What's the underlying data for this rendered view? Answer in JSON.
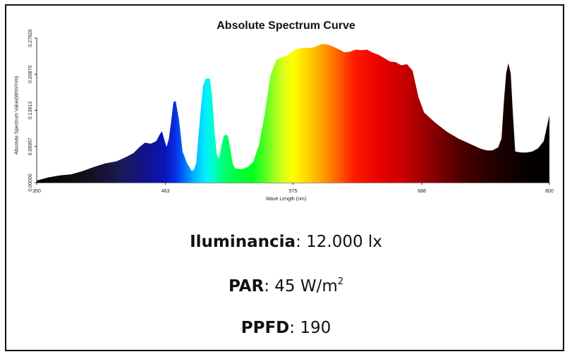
{
  "chart_data": {
    "type": "area",
    "title": "Absolute Spectrum Curve",
    "xlabel": "Wave Length (nm)",
    "ylabel": "Absolute Spectrum Value(W/m²/nm)",
    "xlim": [
      350,
      800
    ],
    "ylim": [
      0,
      0.27826
    ],
    "x_ticks": [
      "350",
      "463",
      "575",
      "688",
      "800"
    ],
    "y_ticks": [
      "0.00000",
      "0.06957",
      "0.13913",
      "0.20870",
      "0.27826"
    ],
    "x": [
      350,
      360,
      370,
      380,
      390,
      400,
      410,
      420,
      425,
      430,
      435,
      440,
      445,
      450,
      455,
      458,
      460,
      462,
      464,
      466,
      468,
      470,
      472,
      475,
      478,
      482,
      486,
      488,
      490,
      492,
      494,
      496,
      498,
      500,
      502,
      504,
      506,
      508,
      510,
      512,
      514,
      516,
      518,
      520,
      522,
      524,
      526,
      530,
      535,
      540,
      545,
      550,
      555,
      560,
      565,
      570,
      575,
      580,
      585,
      590,
      595,
      600,
      605,
      610,
      615,
      620,
      625,
      630,
      635,
      640,
      645,
      650,
      655,
      660,
      665,
      670,
      675,
      680,
      685,
      690,
      700,
      710,
      720,
      730,
      740,
      745,
      750,
      755,
      758,
      760,
      762,
      764,
      766,
      768,
      770,
      775,
      780,
      785,
      790,
      795,
      800
    ],
    "values": [
      0.004,
      0.01,
      0.014,
      0.016,
      0.022,
      0.03,
      0.037,
      0.041,
      0.046,
      0.051,
      0.057,
      0.068,
      0.077,
      0.075,
      0.08,
      0.093,
      0.099,
      0.083,
      0.069,
      0.084,
      0.117,
      0.155,
      0.157,
      0.12,
      0.06,
      0.037,
      0.023,
      0.025,
      0.038,
      0.09,
      0.14,
      0.186,
      0.199,
      0.201,
      0.2,
      0.165,
      0.1,
      0.055,
      0.046,
      0.068,
      0.089,
      0.093,
      0.089,
      0.065,
      0.037,
      0.028,
      0.027,
      0.026,
      0.03,
      0.04,
      0.072,
      0.13,
      0.205,
      0.236,
      0.241,
      0.245,
      0.254,
      0.258,
      0.26,
      0.259,
      0.262,
      0.267,
      0.266,
      0.262,
      0.257,
      0.251,
      0.252,
      0.256,
      0.255,
      0.256,
      0.25,
      0.246,
      0.24,
      0.233,
      0.232,
      0.226,
      0.228,
      0.215,
      0.165,
      0.135,
      0.115,
      0.098,
      0.085,
      0.075,
      0.065,
      0.062,
      0.062,
      0.068,
      0.085,
      0.155,
      0.21,
      0.23,
      0.21,
      0.13,
      0.06,
      0.058,
      0.058,
      0.06,
      0.066,
      0.08,
      0.13
    ],
    "grid": false,
    "legend": "none"
  },
  "metrics": {
    "iluminancia_label": "Iluminancia",
    "iluminancia_value": ": 12.000 lx",
    "par_label": "PAR",
    "par_value": ": 45 W/m",
    "par_sup": "2",
    "ppfd_label": "PPFD",
    "ppfd_value": ": 190"
  }
}
